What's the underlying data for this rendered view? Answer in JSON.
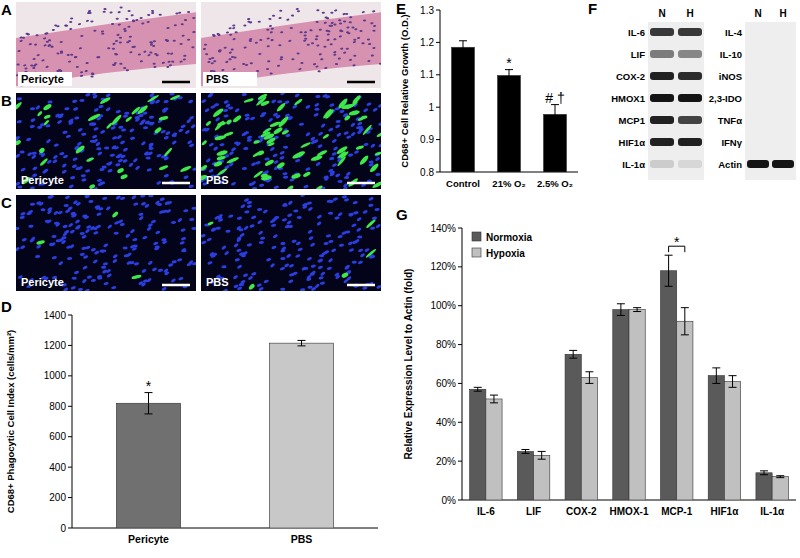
{
  "panels": {
    "A": {
      "title": "A",
      "images": [
        "Pericyte",
        "PBS"
      ]
    },
    "B": {
      "title": "B",
      "images": [
        "Pericyte",
        "PBS"
      ]
    },
    "C": {
      "title": "C",
      "images": [
        "Pericyte",
        "PBS"
      ]
    }
  },
  "gel": {
    "title": "F",
    "lanes": [
      "N",
      "H"
    ],
    "groups": [
      [
        {
          "gene": "IL-6",
          "band": [
            0.8,
            0.8
          ]
        },
        {
          "gene": "LIF",
          "band": [
            0.5,
            0.45
          ]
        },
        {
          "gene": "COX-2",
          "band": [
            0.9,
            0.85
          ]
        },
        {
          "gene": "HMOX1",
          "band": [
            0.95,
            0.95
          ]
        },
        {
          "gene": "MCP1",
          "band": [
            0.9,
            0.75
          ]
        },
        {
          "gene": "HIF1α",
          "band": [
            0.9,
            0.9
          ]
        },
        {
          "gene": "IL-1α",
          "band": [
            0.15,
            0.1
          ]
        }
      ],
      [
        {
          "gene": "IL-4",
          "band": [
            0,
            0
          ]
        },
        {
          "gene": "IL-10",
          "band": [
            0,
            0
          ]
        },
        {
          "gene": "iNOS",
          "band": [
            0,
            0
          ]
        },
        {
          "gene": "2,3-IDO",
          "band": [
            0,
            0
          ]
        },
        {
          "gene": "TNFα",
          "band": [
            0,
            0
          ]
        },
        {
          "gene": "IFNγ",
          "band": [
            0,
            0
          ]
        },
        {
          "gene": "Actin",
          "band": [
            0.95,
            0.95
          ]
        }
      ]
    ]
  },
  "chart_data": [
    {
      "type": "bar",
      "title": "D",
      "y_label": "CD68+ Phagocytic Cell Index (cells/mm²)",
      "categories": [
        "Pericyte",
        "PBS"
      ],
      "values": [
        820,
        1215
      ],
      "errors": [
        70,
        18
      ],
      "colors": [
        "#707070",
        "#c8c8c8"
      ],
      "ylim": [
        0,
        1400
      ],
      "yticks": [
        0,
        200,
        400,
        600,
        800,
        1000,
        1200,
        1400
      ],
      "annotations": [
        {
          "text": "*",
          "category": "Pericyte"
        }
      ]
    },
    {
      "type": "bar",
      "title": "E",
      "y_label": "CD68+ Cell Relative Growth (O.D.)",
      "categories": [
        "Control",
        "21% O₂",
        "2.5% O₂"
      ],
      "values": [
        1.185,
        1.098,
        0.978
      ],
      "errors": [
        0.02,
        0.018,
        0.03
      ],
      "color": "#000000",
      "ylim": [
        0.8,
        1.3
      ],
      "yticks": [
        0.8,
        0.9,
        1,
        1.1,
        1.2,
        1.3
      ],
      "annotations": [
        {
          "text": "*",
          "category": "21% O₂"
        },
        {
          "text": "# †",
          "category": "2.5% O₂"
        }
      ]
    },
    {
      "type": "bar",
      "title": "G",
      "y_label": "Relative Expression Level to Actin (fold)",
      "categories": [
        "IL-6",
        "LIF",
        "COX-2",
        "HMOX-1",
        "MCP-1",
        "HIF1α",
        "IL-1α"
      ],
      "series": [
        {
          "name": "Normoxia",
          "color": "#5a5a5a",
          "values": [
            57,
            25,
            75,
            98,
            118,
            64,
            14
          ],
          "errors": [
            1,
            1,
            2,
            3,
            8,
            4,
            1
          ]
        },
        {
          "name": "Hypoxia",
          "color": "#c0c0c0",
          "values": [
            52,
            23,
            63,
            98,
            92,
            61,
            12
          ],
          "errors": [
            2,
            2,
            3,
            1,
            7,
            3,
            0.5
          ]
        }
      ],
      "ylim": [
        0,
        140
      ],
      "yticks": [
        {
          "value": 0,
          "label": "0%"
        },
        {
          "value": 20,
          "label": "20%"
        },
        {
          "value": 40,
          "label": "40%"
        },
        {
          "value": 60,
          "label": "60%"
        },
        {
          "value": 80,
          "label": "80%"
        },
        {
          "value": 100,
          "label": "100%"
        },
        {
          "value": 120,
          "label": "120%"
        },
        {
          "value": 140,
          "label": "140%"
        }
      ],
      "legend": "top-left",
      "annotations": [
        {
          "text": "*",
          "category": "MCP-1"
        }
      ]
    }
  ]
}
